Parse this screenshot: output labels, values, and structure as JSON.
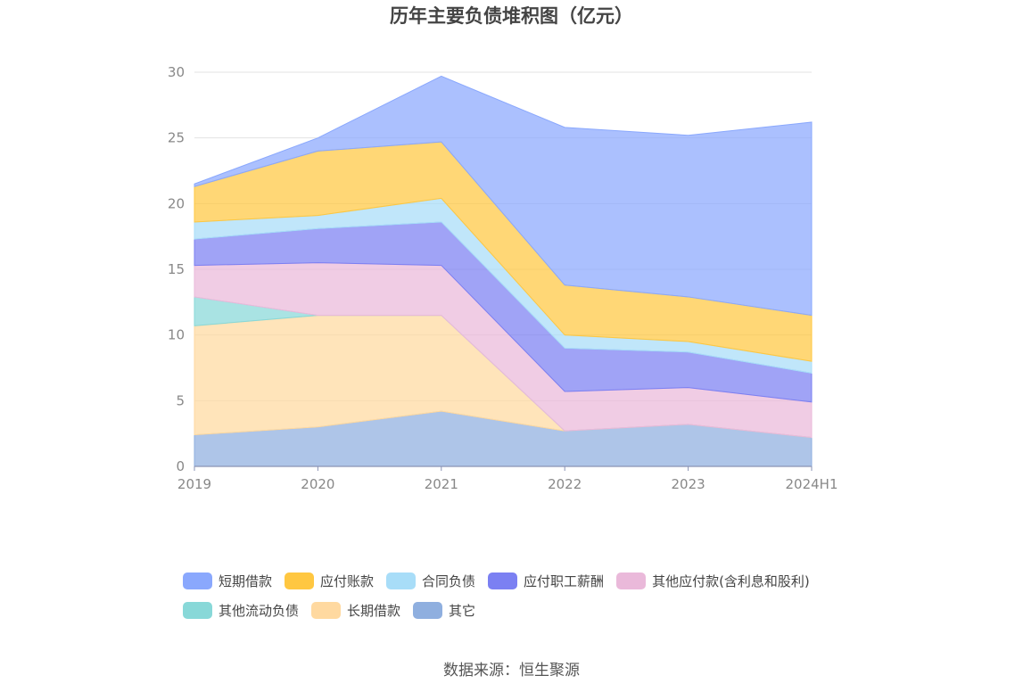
{
  "chart_data": {
    "type": "area",
    "stacked": true,
    "title": "历年主要负债堆积图（亿元）",
    "categories": [
      "2019",
      "2020",
      "2021",
      "2022",
      "2023",
      "2024H1"
    ],
    "ylim": [
      0,
      30
    ],
    "yticks": [
      "0",
      "5",
      "10",
      "15",
      "20",
      "25",
      "30"
    ],
    "grid": true,
    "legend_position": "bottom",
    "series": [
      {
        "name": "其它",
        "color": "#8fafdf",
        "values": [
          2.4,
          3.0,
          4.2,
          2.7,
          3.2,
          2.2
        ]
      },
      {
        "name": "长期借款",
        "color": "#ffd9a0",
        "values": [
          8.3,
          8.5,
          7.3,
          0.0,
          0.0,
          0.0
        ]
      },
      {
        "name": "其他流动负债",
        "color": "#88d8d8",
        "values": [
          2.2,
          0.0,
          0.0,
          0.0,
          0.0,
          0.0
        ]
      },
      {
        "name": "其他应付款(含利息和股利)",
        "color": "#eab9da",
        "values": [
          2.4,
          4.0,
          3.8,
          3.0,
          2.8,
          2.7
        ]
      },
      {
        "name": "应付职工薪酬",
        "color": "#7b80f2",
        "values": [
          2.0,
          2.6,
          3.3,
          3.3,
          2.7,
          2.2
        ]
      },
      {
        "name": "合同负债",
        "color": "#a8ddf8",
        "values": [
          1.3,
          1.0,
          1.8,
          1.0,
          0.8,
          0.9
        ]
      },
      {
        "name": "应付账款",
        "color": "#ffc741",
        "values": [
          2.7,
          4.9,
          4.3,
          3.8,
          3.4,
          3.5
        ]
      },
      {
        "name": "短期借款",
        "color": "#8aa8fd",
        "values": [
          0.2,
          1.0,
          5.0,
          12.0,
          12.3,
          14.7
        ]
      }
    ],
    "legend_order": [
      "短期借款",
      "应付账款",
      "合同负债",
      "应付职工薪酬",
      "其他应付款(含利息和股利)",
      "其他流动负债",
      "长期借款",
      "其它"
    ]
  },
  "source_text": "数据来源：恒生聚源"
}
